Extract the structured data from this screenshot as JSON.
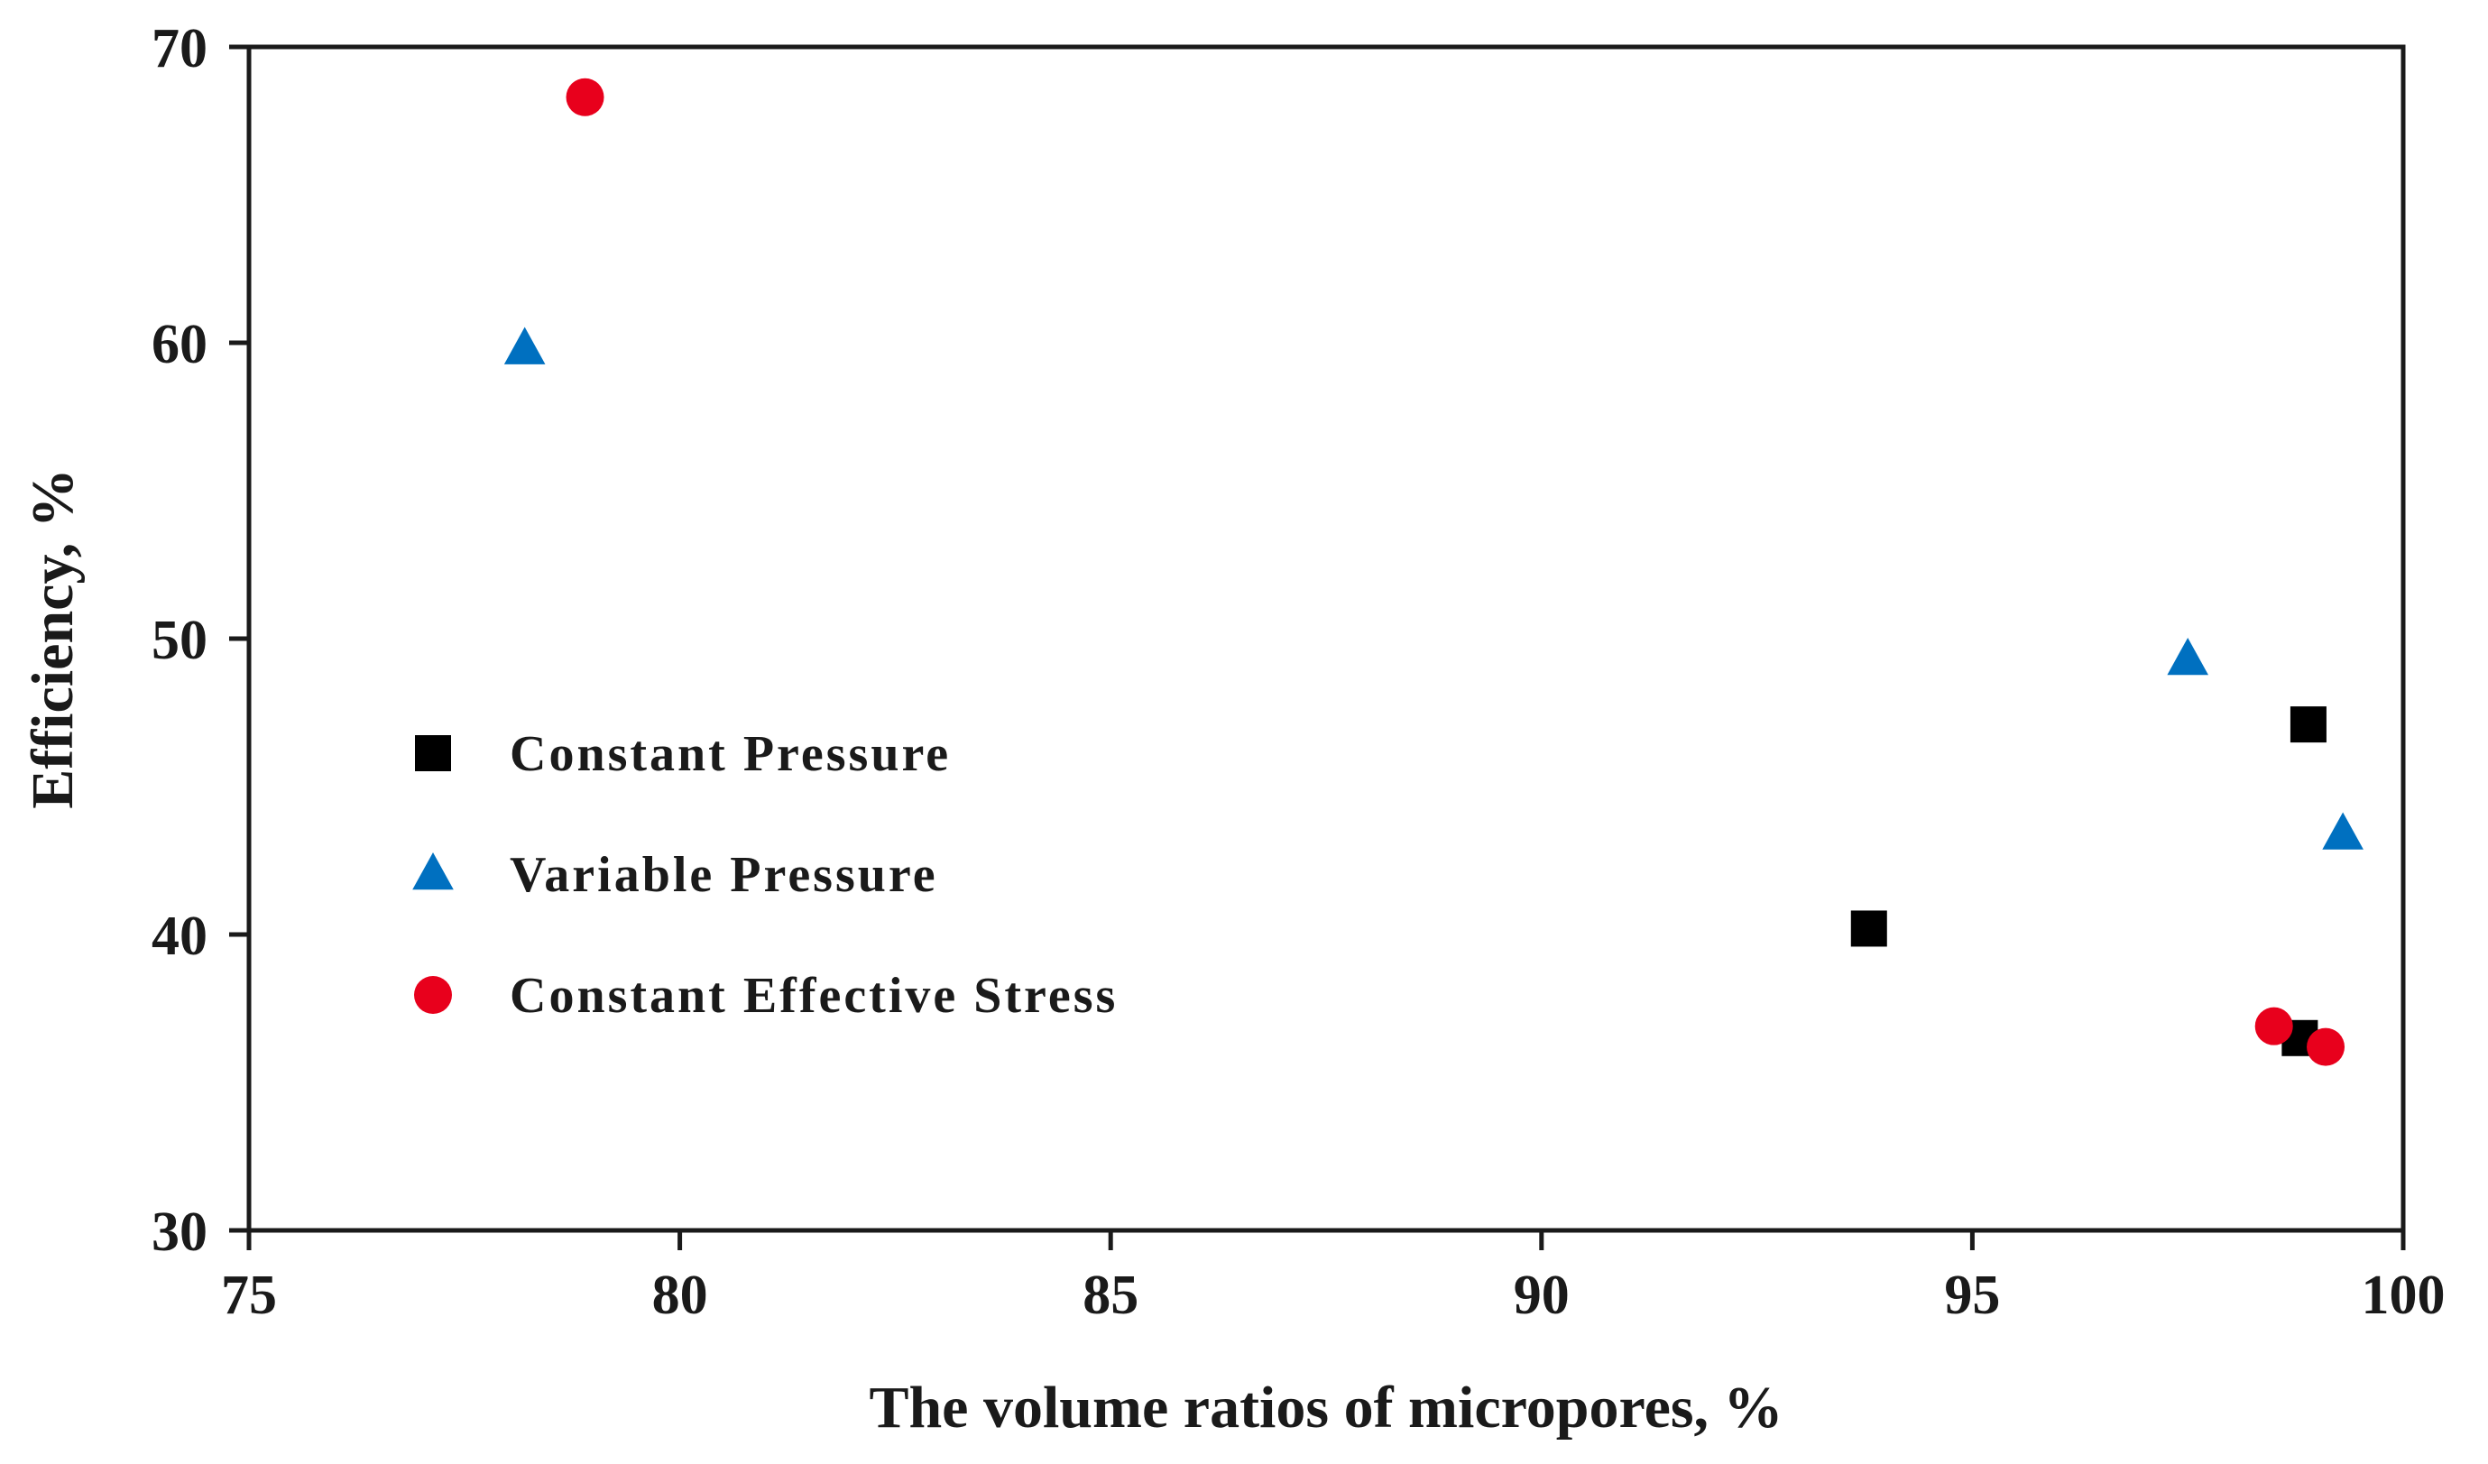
{
  "chart_data": {
    "type": "scatter",
    "title": "",
    "xlabel": "The volume ratios of micropores, %",
    "ylabel": "Efficiency, %",
    "xlim": [
      75,
      100
    ],
    "ylim": [
      30,
      70
    ],
    "xticks": [
      75,
      80,
      85,
      90,
      95,
      100
    ],
    "yticks": [
      30,
      40,
      50,
      60,
      70
    ],
    "grid": false,
    "legend_position": "center-left",
    "series": [
      {
        "name": "Constant Pressure",
        "marker": "square",
        "color": "#000000",
        "points": [
          {
            "x": 93.8,
            "y": 40.2
          },
          {
            "x": 98.9,
            "y": 47.1
          },
          {
            "x": 98.8,
            "y": 36.5
          }
        ]
      },
      {
        "name": "Variable Pressure",
        "marker": "triangle",
        "color": "#0070c0",
        "points": [
          {
            "x": 78.2,
            "y": 59.8
          },
          {
            "x": 97.5,
            "y": 49.3
          },
          {
            "x": 99.3,
            "y": 43.4
          }
        ]
      },
      {
        "name": "Constant Effective Stress",
        "marker": "circle",
        "color": "#e8001c",
        "points": [
          {
            "x": 78.9,
            "y": 68.3
          },
          {
            "x": 98.5,
            "y": 36.9
          },
          {
            "x": 99.1,
            "y": 36.2
          }
        ]
      }
    ]
  }
}
